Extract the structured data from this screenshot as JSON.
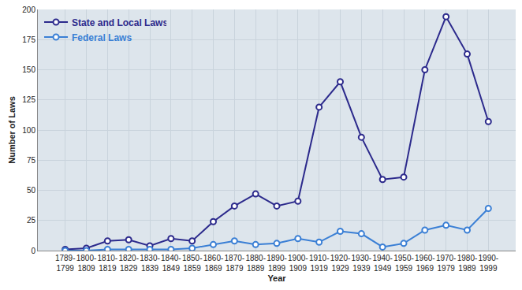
{
  "chart_data": {
    "type": "line",
    "x_label": "Year",
    "y_label": "Number of Laws",
    "categories": [
      "1789-1799",
      "1800-1809",
      "1810-1819",
      "1820-1829",
      "1830-1839",
      "1840-1849",
      "1850-1859",
      "1860-1869",
      "1870-1879",
      "1880-1889",
      "1890-1899",
      "1900-1909",
      "1910-1919",
      "1920-1929",
      "1930-1939",
      "1940-1949",
      "1950-1959",
      "1960-1969",
      "1970-1979",
      "1980-1989",
      "1990-1999"
    ],
    "series": [
      {
        "name": "State and Local Laws",
        "color": "#2c2a8c",
        "marker": "circle",
        "line_style": "solid",
        "values": [
          1,
          2,
          8,
          9,
          4,
          10,
          8,
          24,
          37,
          47,
          37,
          41,
          119,
          140,
          94,
          59,
          61,
          150,
          194,
          163,
          107
        ]
      },
      {
        "name": "Federal Laws",
        "color": "#3a7fd5",
        "marker": "circle",
        "line_style": "solid",
        "values": [
          0,
          0,
          1,
          1,
          1,
          1,
          2,
          5,
          8,
          5,
          6,
          10,
          7,
          16,
          14,
          3,
          6,
          17,
          21,
          17,
          35
        ]
      }
    ],
    "ylim": [
      0,
      200
    ],
    "yticks": [
      0,
      25,
      50,
      75,
      100,
      125,
      150,
      175,
      200
    ],
    "grid": true,
    "legend": "upper left"
  }
}
